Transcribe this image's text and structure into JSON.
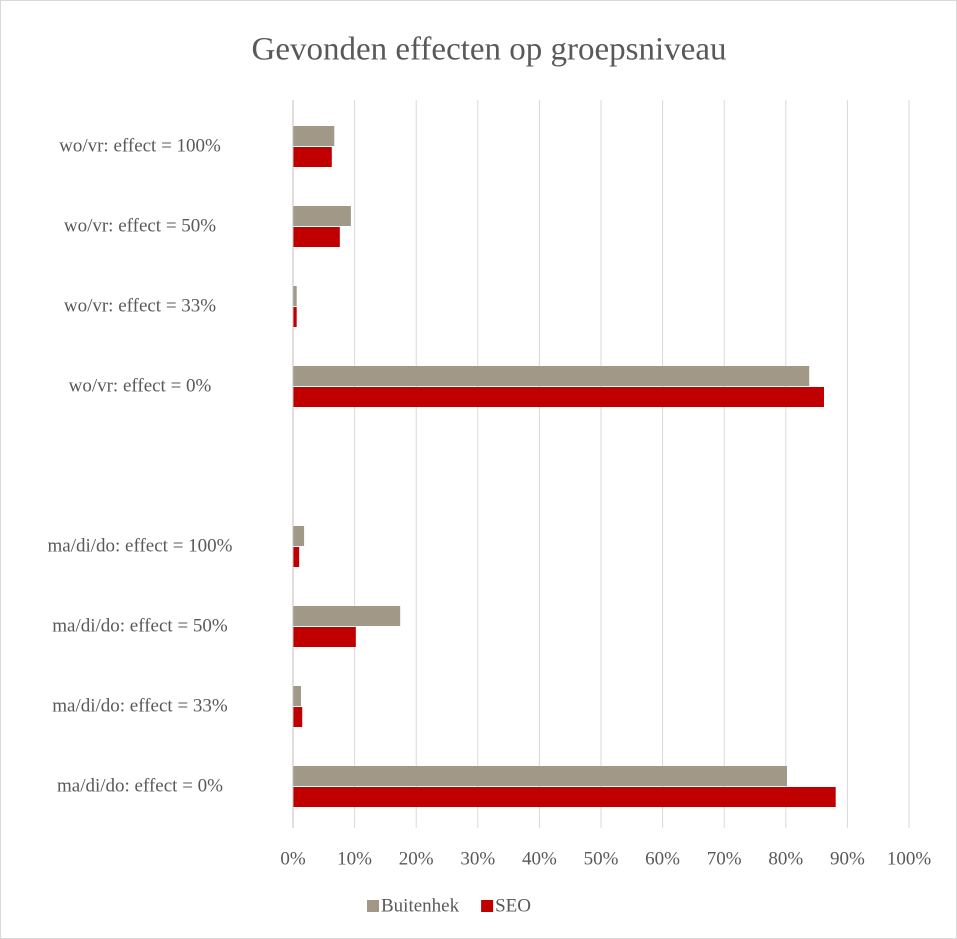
{
  "chart_data": {
    "type": "bar",
    "orientation": "horizontal",
    "title": "Gevonden effecten op groepsniveau",
    "categories": [
      "wo/vr:  effect = 100%",
      "wo/vr:  effect = 50%",
      "wo/vr:  effect = 33%",
      "wo/vr:  effect = 0%",
      null,
      "ma/di/do:  effect = 100%",
      "ma/di/do:  effect = 50%",
      "ma/di/do:  effect = 33%",
      "ma/di/do:  effect = 0%"
    ],
    "series": [
      {
        "name": "Buitenhek",
        "color": "#a29888",
        "values": [
          6.7,
          9.4,
          0.6,
          83.8,
          null,
          1.8,
          17.4,
          1.3,
          80.2
        ]
      },
      {
        "name": "SEO",
        "color": "#c00000",
        "values": [
          6.3,
          7.6,
          0.6,
          86.2,
          null,
          1.0,
          10.2,
          1.5,
          88.1
        ]
      }
    ],
    "xlim": [
      0,
      100
    ],
    "xticks": [
      {
        "value": 0,
        "label": "0%"
      },
      {
        "value": 10,
        "label": "10%"
      },
      {
        "value": 20,
        "label": "20%"
      },
      {
        "value": 30,
        "label": "30%"
      },
      {
        "value": 40,
        "label": "40%"
      },
      {
        "value": 50,
        "label": "50%"
      },
      {
        "value": 60,
        "label": "60%"
      },
      {
        "value": 70,
        "label": "70%"
      },
      {
        "value": 80,
        "label": "80%"
      },
      {
        "value": 90,
        "label": "90%"
      },
      {
        "value": 100,
        "label": "100%"
      }
    ],
    "grid": true,
    "legend": "bottom"
  }
}
